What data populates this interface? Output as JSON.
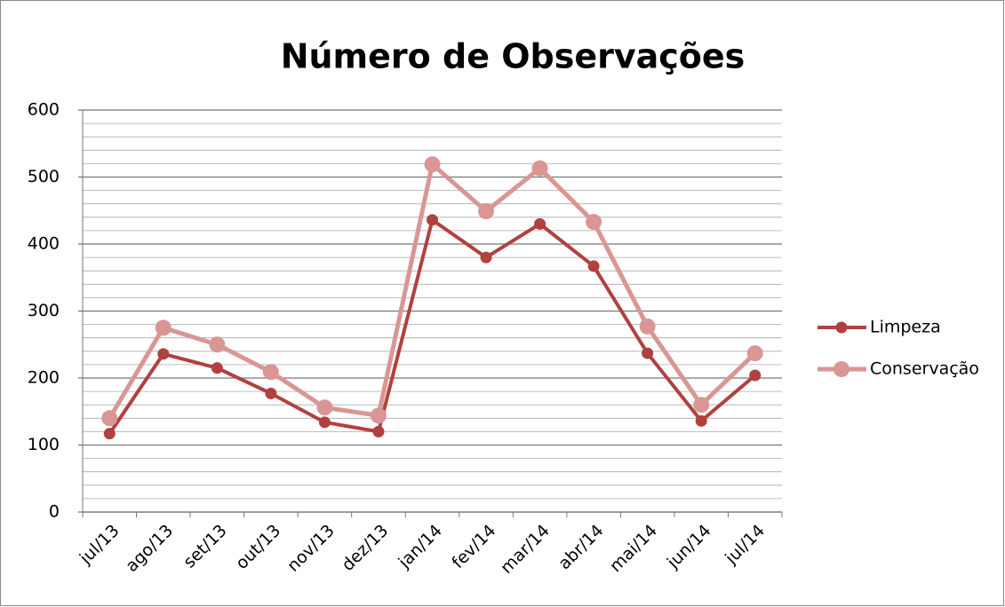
{
  "chart_data": {
    "type": "line",
    "title": "Número de Observações",
    "categories": [
      "jul/13",
      "ago/13",
      "set/13",
      "out/13",
      "nov/13",
      "dez/13",
      "jan/14",
      "fev/14",
      "mar/14",
      "abr/14",
      "mai/14",
      "jun/14",
      "jul/14"
    ],
    "series": [
      {
        "name": "Limpeza",
        "color": "#b0413e",
        "values": [
          117,
          236,
          215,
          177,
          134,
          120,
          436,
          380,
          430,
          367,
          237,
          136,
          204
        ]
      },
      {
        "name": "Conservação",
        "color": "#d99694",
        "values": [
          140,
          275,
          250,
          209,
          156,
          144,
          519,
          449,
          513,
          433,
          277,
          160,
          237
        ]
      }
    ],
    "ylim": [
      0,
      600
    ],
    "yticks": [
      0,
      100,
      200,
      300,
      400,
      500,
      600
    ],
    "grid": true,
    "minor_grid_step": 20,
    "legend": "right"
  }
}
